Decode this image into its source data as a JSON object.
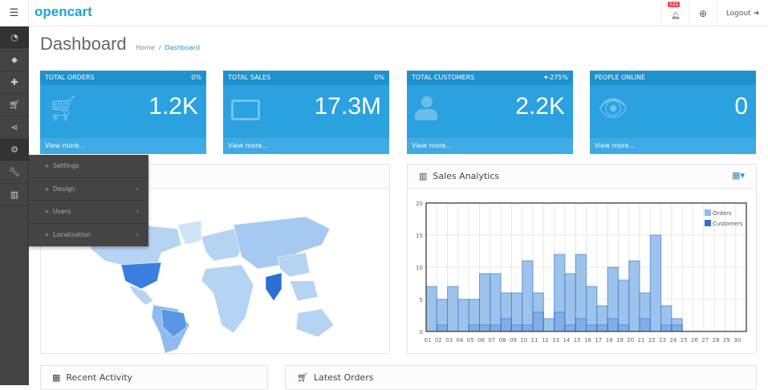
{
  "header": {
    "logo": "opencart",
    "notification_count": "521",
    "logout_label": "Logout"
  },
  "sidebar": {
    "items": [
      {
        "icon": "dashboard-icon"
      },
      {
        "icon": "tag-icon"
      },
      {
        "icon": "puzzle-icon"
      },
      {
        "icon": "cart-icon"
      },
      {
        "icon": "share-icon"
      },
      {
        "icon": "gear-icon"
      },
      {
        "icon": "wrench-icon"
      },
      {
        "icon": "bar-chart-icon"
      }
    ]
  },
  "flyout": {
    "items": [
      {
        "label": "Settings"
      },
      {
        "label": "Design"
      },
      {
        "label": "Users"
      },
      {
        "label": "Localisation"
      }
    ]
  },
  "page": {
    "title": "Dashboard",
    "breadcrumb": [
      "Home",
      "Dashboard"
    ]
  },
  "tiles": [
    {
      "title": "TOTAL ORDERS",
      "change": "0%",
      "value": "1.2K",
      "footer": "View more...",
      "icon": "cart-icon"
    },
    {
      "title": "TOTAL SALES",
      "change": "0%",
      "value": "17.3M",
      "footer": "View more...",
      "icon": "credit-card-icon"
    },
    {
      "title": "TOTAL CUSTOMERS",
      "change": "-275%",
      "value": "2.2K",
      "footer": "View more...",
      "icon": "user-icon"
    },
    {
      "title": "PEOPLE ONLINE",
      "change": "",
      "value": "0",
      "footer": "View more...",
      "icon": "eye-icon"
    }
  ],
  "analytics": {
    "title": "Sales Analytics"
  },
  "bottom": {
    "recent_activity": "Recent Activity",
    "latest_orders": "Latest Orders"
  },
  "colors": {
    "accent": "#1e91cf",
    "tile": "#2ba1e0",
    "orders": "#94bce8",
    "customers": "#2a6fd6"
  },
  "chart_data": {
    "type": "bar",
    "categories": [
      "01",
      "02",
      "03",
      "04",
      "05",
      "06",
      "07",
      "08",
      "09",
      "10",
      "11",
      "12",
      "13",
      "14",
      "15",
      "16",
      "17",
      "18",
      "19",
      "20",
      "21",
      "22",
      "23",
      "24",
      "25",
      "26",
      "27",
      "28",
      "29",
      "30"
    ],
    "series": [
      {
        "name": "Orders",
        "values": [
          7,
          5,
          7,
          5,
          5,
          9,
          9,
          6,
          6,
          11,
          6,
          2,
          12,
          9,
          12,
          7,
          4,
          10,
          8,
          11,
          6,
          15,
          4,
          2,
          0,
          0,
          0,
          0,
          0,
          0
        ]
      },
      {
        "name": "Customers",
        "values": [
          0,
          1,
          0,
          0,
          1,
          1,
          1,
          2,
          1,
          1,
          3,
          0,
          3,
          1,
          2,
          1,
          1,
          2,
          1,
          0,
          2,
          0,
          1,
          1,
          0,
          0,
          0,
          0,
          0,
          0
        ]
      }
    ],
    "ylim": [
      0,
      20
    ],
    "yticks": [
      0,
      5,
      10,
      15,
      20
    ],
    "grid": true,
    "legend": "top-right"
  }
}
